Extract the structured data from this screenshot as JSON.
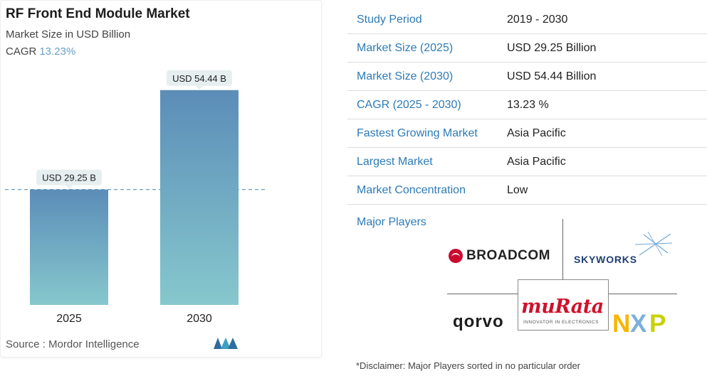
{
  "chart": {
    "title": "RF Front End Module Market",
    "subtitle": "Market Size in USD Billion",
    "cagr_label": "CAGR",
    "cagr_value": "13.23%",
    "source": "Source :  Mordor Intelligence"
  },
  "chart_data": {
    "type": "bar",
    "categories": [
      "2025",
      "2030"
    ],
    "values": [
      29.25,
      54.44
    ],
    "data_labels": [
      "USD 29.25 B",
      "USD 54.44 B"
    ],
    "title": "RF Front End Module Market",
    "subtitle": "Market Size in USD Billion",
    "xlabel": "",
    "ylabel": "",
    "ylim": [
      0,
      58
    ],
    "grid": false,
    "reference_line": "dashed line at the 2025 value",
    "colors": {
      "bar_top": "#5b8db8",
      "bar_bottom": "#86c8cd",
      "label_bg": "#e6eef0",
      "ref_line": "#6a9fb8"
    }
  },
  "stats": [
    {
      "label": "Study Period",
      "value": "2019 - 2030"
    },
    {
      "label": "Market Size (2025)",
      "value": "USD 29.25 Billion"
    },
    {
      "label": "Market Size (2030)",
      "value": "USD 54.44 Billion"
    },
    {
      "label": "CAGR (2025 - 2030)",
      "value": "13.23 %"
    },
    {
      "label": "Fastest Growing Market",
      "value": "Asia Pacific"
    },
    {
      "label": "Largest Market",
      "value": "Asia Pacific"
    },
    {
      "label": "Market Concentration",
      "value": "Low"
    }
  ],
  "players": {
    "heading": "Major Players",
    "broadcom": "BROADCOM",
    "skyworks": "SKYWORKS",
    "qorvo": "qorvo",
    "murata": "muRata",
    "murata_tagline": "INNOVATOR IN ELECTRONICS",
    "nxp": "NXP"
  },
  "disclaimer": "*Disclaimer: Major Players sorted in no particular order",
  "colors": {
    "accent": "#2d7bb5",
    "cagr": "#6aa1c2",
    "broadcom_red": "#cc092f",
    "murata_red": "#d0112b"
  }
}
